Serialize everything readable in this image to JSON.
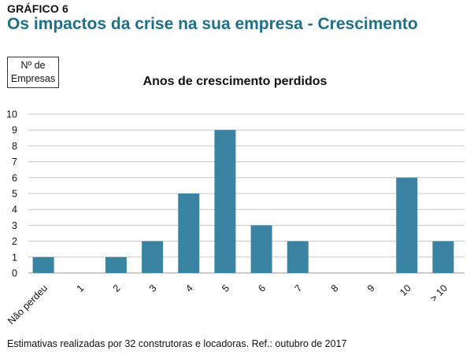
{
  "header": {
    "kicker": "GRÁFICO 6",
    "title": "Os impactos da crise na sua empresa - Crescimento"
  },
  "y_axis_box": {
    "line1": "Nº de",
    "line2": "Empresas"
  },
  "footnote": "Estimativas realizadas por 32 construtoras e locadoras. Ref.: outubro de 2017",
  "colors": {
    "bar": "#3b83a3",
    "title": "#1f6f8b",
    "grid": "#c8c8c8"
  },
  "chart_data": {
    "type": "bar",
    "title": "Anos de crescimento perdidos",
    "xlabel": "",
    "ylabel": "Nº de Empresas",
    "categories": [
      "Não perdeu",
      "1",
      "2",
      "3",
      "4",
      "5",
      "6",
      "7",
      "8",
      "9",
      "10",
      "> 10"
    ],
    "values": [
      1,
      0,
      1,
      2,
      5,
      9,
      3,
      2,
      0,
      0,
      6,
      2
    ],
    "ylim": [
      0,
      10
    ],
    "yticks": [
      0,
      1,
      2,
      3,
      4,
      5,
      6,
      7,
      8,
      9,
      10
    ],
    "grid": true,
    "legend": "none"
  }
}
